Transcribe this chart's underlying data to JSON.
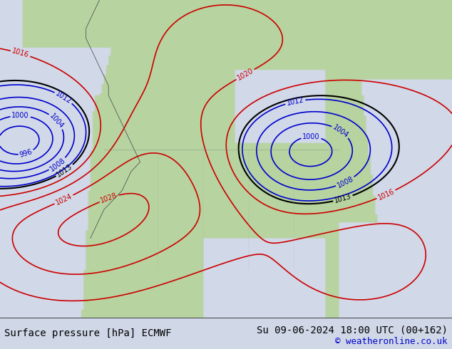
{
  "title_left": "Surface pressure [hPa] ECMWF",
  "title_right": "Su 09-06-2024 18:00 UTC (00+162)",
  "copyright": "© weatheronline.co.uk",
  "bg_color": "#d0d8e8",
  "land_color": "#b8d4a0",
  "water_color": "#d0d8e8",
  "fig_width": 6.34,
  "fig_height": 4.9,
  "dpi": 100,
  "bottom_bar_color": "#ffffff",
  "bottom_bar_height": 0.09,
  "title_fontsize": 10,
  "copyright_fontsize": 9,
  "text_color": "#000000",
  "blue_color": "#0000cc",
  "red_color": "#cc0000",
  "black_color": "#000000"
}
